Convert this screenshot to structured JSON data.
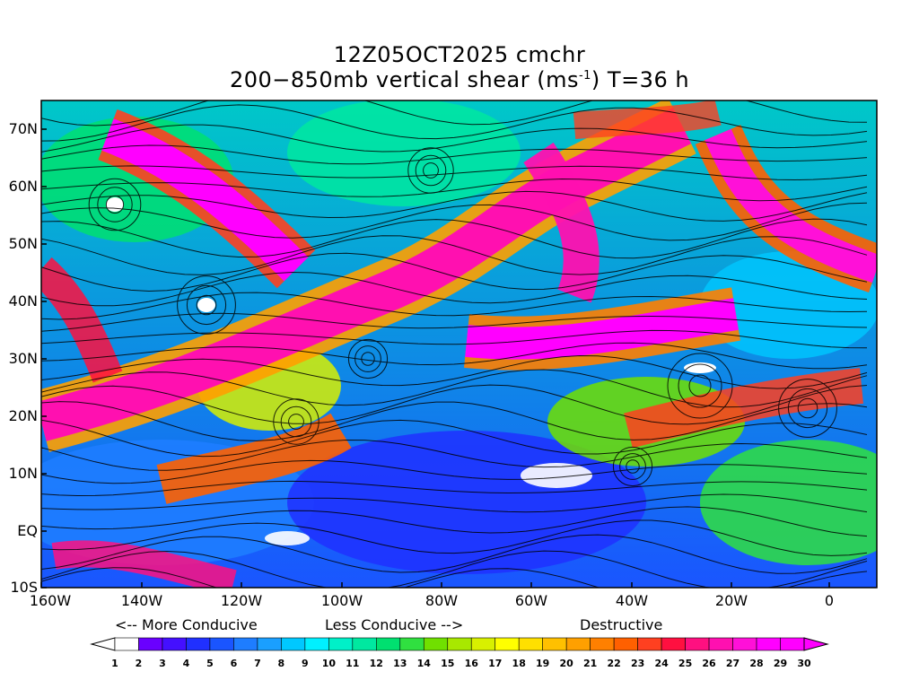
{
  "title": {
    "line1": "12Z05OCT2025 cmchr",
    "line2_pre": "200−850mb vertical shear (ms",
    "line2_sup": "-1",
    "line2_post": ") T=36 h"
  },
  "lat_labels": [
    "70N",
    "60N",
    "50N",
    "40N",
    "30N",
    "20N",
    "10N",
    "EQ",
    "10S"
  ],
  "lon_labels": [
    "160W",
    "140W",
    "120W",
    "100W",
    "80W",
    "60W",
    "40W",
    "20W",
    "0"
  ],
  "legend": {
    "more_conducive": "<-- More Conducive",
    "less_conducive": "Less Conducive -->",
    "destructive": "Destructive"
  },
  "colorbar": {
    "labels": [
      "1",
      "2",
      "3",
      "4",
      "5",
      "6",
      "7",
      "8",
      "9",
      "10",
      "11",
      "12",
      "13",
      "14",
      "15",
      "16",
      "17",
      "18",
      "19",
      "20",
      "21",
      "22",
      "23",
      "24",
      "25",
      "26",
      "27",
      "28",
      "29",
      "30"
    ],
    "colors": [
      "#ffffff",
      "#6a00ff",
      "#4410ff",
      "#2030ff",
      "#1a55ff",
      "#1e7dff",
      "#1a9fff",
      "#00c8ff",
      "#00f0ff",
      "#00f0c8",
      "#00e8a0",
      "#00e070",
      "#30e040",
      "#70e000",
      "#a8e800",
      "#d8f000",
      "#ffff00",
      "#ffe000",
      "#ffc000",
      "#ffa000",
      "#ff8000",
      "#ff6000",
      "#ff4020",
      "#ff1040",
      "#ff1080",
      "#ff10b0",
      "#ff10d8",
      "#ff00ff",
      "#ff00ff"
    ]
  }
}
